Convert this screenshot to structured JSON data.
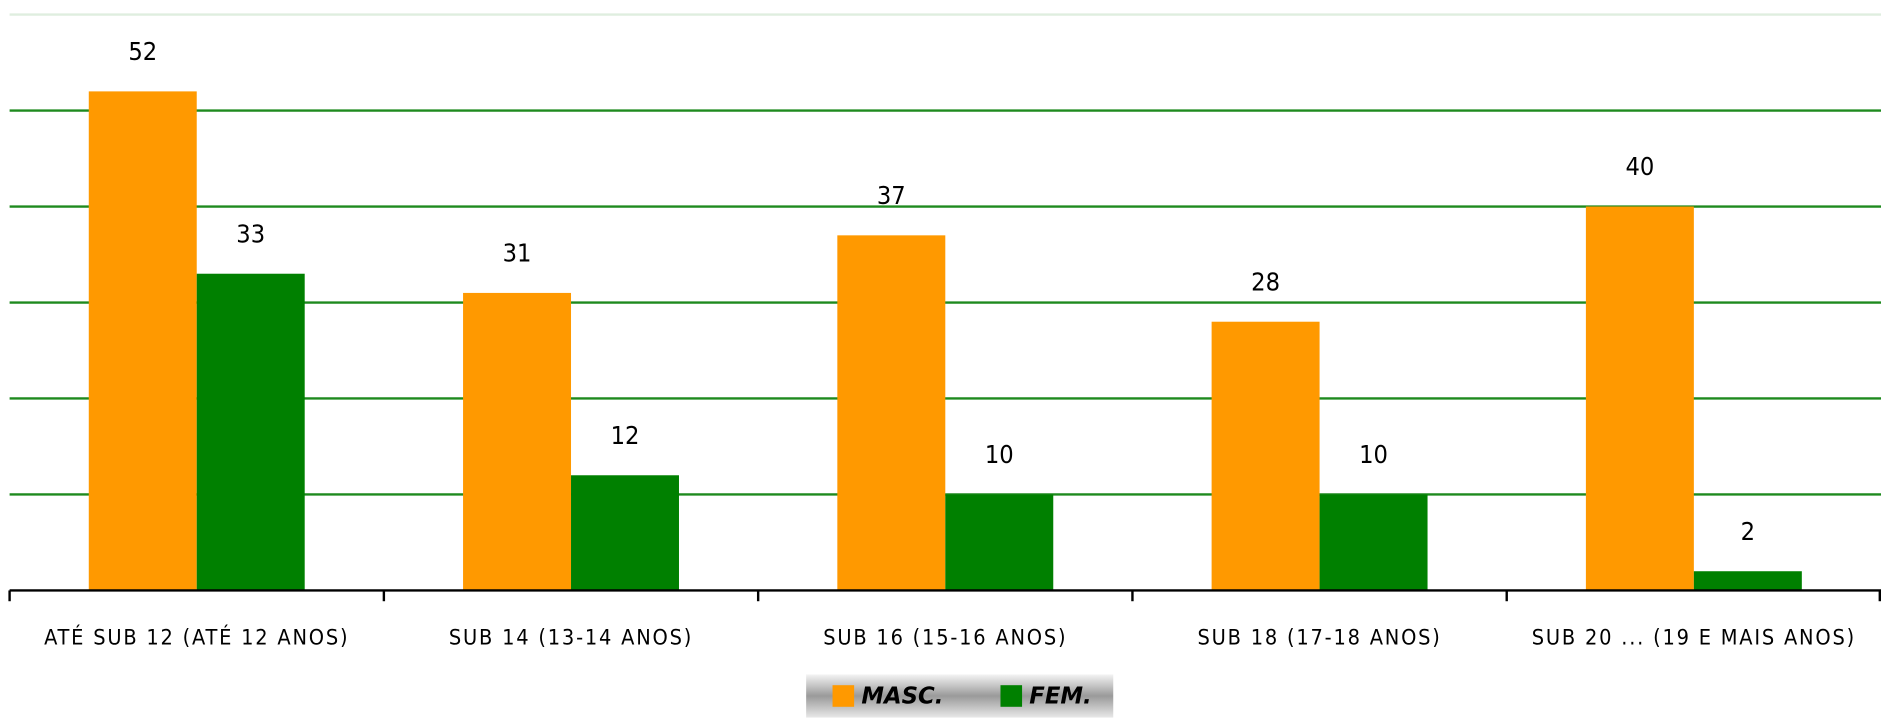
{
  "chart_data": {
    "type": "bar",
    "categories": [
      "ATÉ SUB 12 (ATÉ 12 ANOS)",
      "SUB 14 (13-14 ANOS)",
      "SUB 16 (15-16 ANOS)",
      "SUB 18 (17-18  ANOS)",
      "SUB 20 ... (19 E MAIS ANOS)"
    ],
    "series": [
      {
        "name": "MASC.",
        "color": "#ff9900",
        "values": [
          52,
          31,
          37,
          28,
          40
        ]
      },
      {
        "name": "FEM.",
        "color": "#008000",
        "values": [
          33,
          12,
          10,
          10,
          2
        ]
      }
    ],
    "ylim": [
      0,
      60
    ],
    "yticks": [
      0,
      10,
      20,
      30,
      40,
      50,
      60
    ],
    "grid": true,
    "grid_color": "#1e8a1e",
    "legend": "bottom"
  }
}
